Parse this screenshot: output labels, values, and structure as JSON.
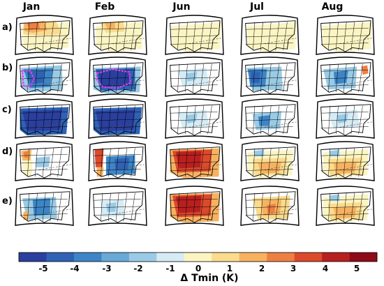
{
  "months": [
    "Jan",
    "Feb",
    "Jun",
    "Jul",
    "Aug"
  ],
  "rows": [
    "a)",
    "b)",
    "c)",
    "d)",
    "e)"
  ],
  "colorbar": {
    "title": "Δ Tmin (K)",
    "ticks": [
      "-5",
      "-4",
      "-3",
      "-2",
      "-1",
      "0",
      "1",
      "2",
      "3",
      "4",
      "5"
    ],
    "colors": [
      "#2a3f9e",
      "#2f62b4",
      "#3d85c6",
      "#69a9d8",
      "#9acbe6",
      "#d6ecf5",
      "#fbf5c3",
      "#fbdb8c",
      "#f7b260",
      "#ee7f42",
      "#dc4a2c",
      "#b8201f",
      "#8e0b17"
    ]
  },
  "panels": [
    [
      "warm-north",
      "mild-yellow",
      "light-yellow",
      "light-yellow",
      "light-yellow"
    ],
    [
      "blue-contour",
      "deep-blue-contour",
      "light-blue",
      "blue-west",
      "blue-mix"
    ],
    [
      "deep-blue",
      "deep-blue",
      "light-blue",
      "blue-center",
      "light-blue"
    ],
    [
      "warm-edges",
      "blue-red-mix",
      "strong-warm",
      "warm-south",
      "warm-south"
    ],
    [
      "blue-east",
      "light-mixed",
      "strong-warm",
      "warm-center",
      "warm-south"
    ]
  ]
}
